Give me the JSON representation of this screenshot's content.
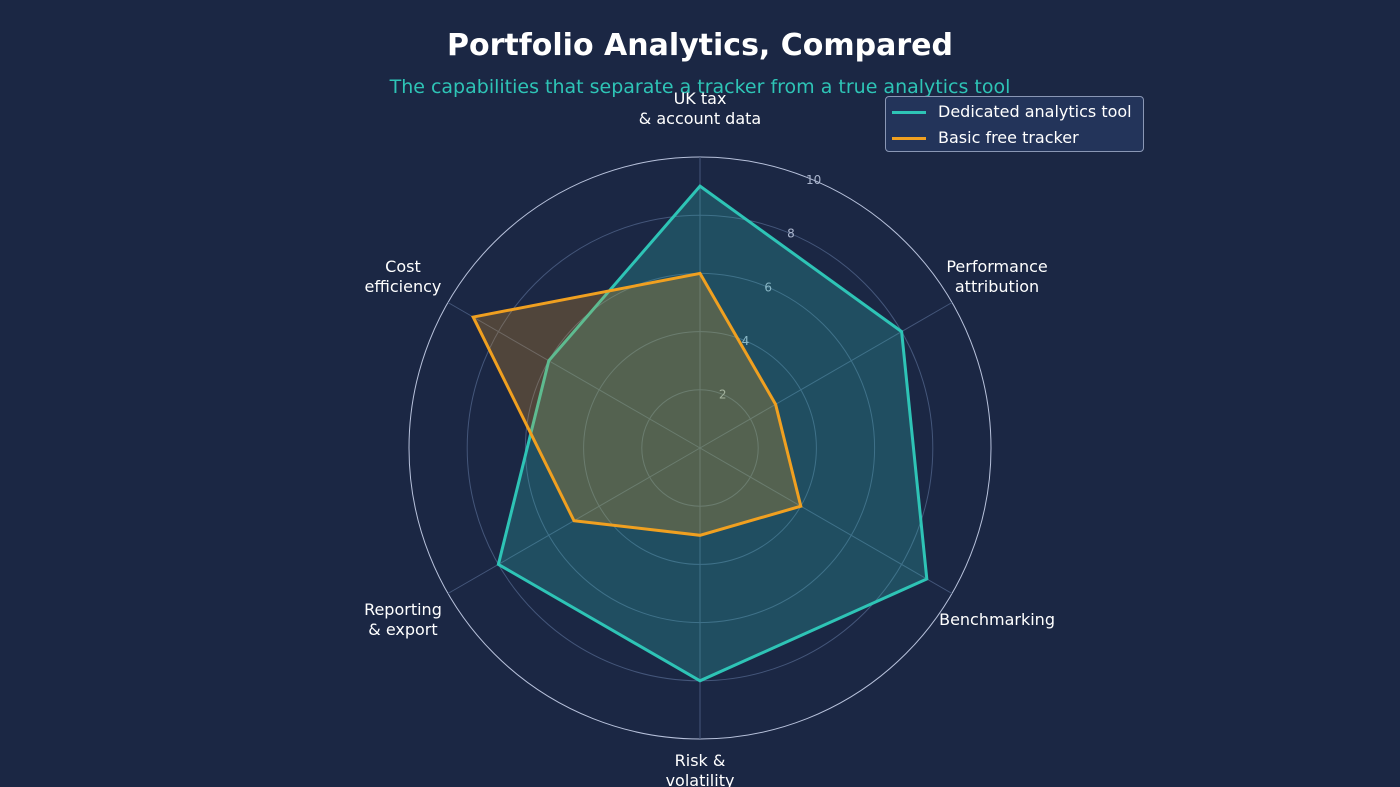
{
  "chart_data": {
    "type": "radar",
    "title": "Portfolio Analytics, Compared",
    "subtitle": "The capabilities that separate a tracker from a true analytics tool",
    "categories": [
      "UK tax\n& account data",
      "Performance\nattribution",
      "Benchmarking",
      "Risk &\nvolatility",
      "Reporting\n& export",
      "Cost\nefficiency"
    ],
    "series": [
      {
        "name": "Dedicated analytics tool",
        "color": "#2ec4b6",
        "values": [
          9,
          8,
          9,
          8,
          8,
          6
        ]
      },
      {
        "name": "Basic free tracker",
        "color": "#f0a020",
        "values": [
          6,
          3,
          4,
          3,
          5,
          9
        ]
      }
    ],
    "ylim": [
      0,
      10
    ],
    "yticks": [
      2,
      4,
      6,
      8,
      10
    ],
    "grid": true,
    "legend": "upper right"
  }
}
